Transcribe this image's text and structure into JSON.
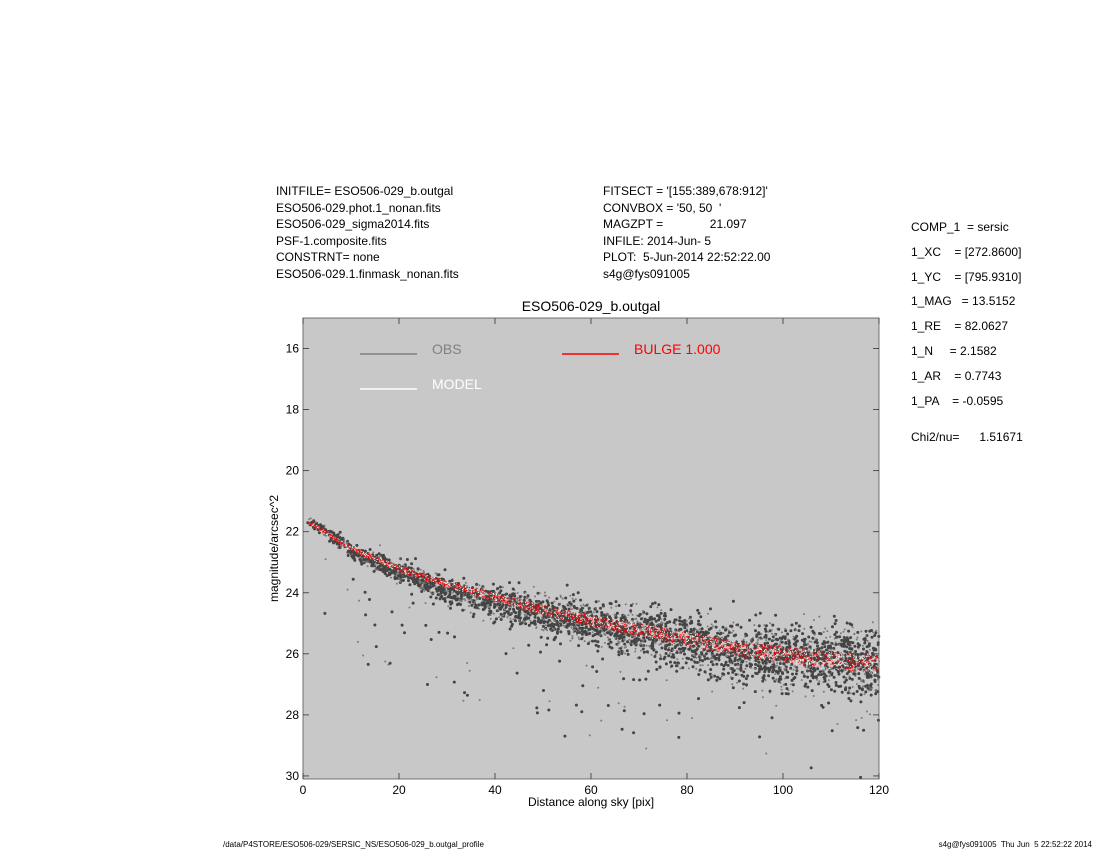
{
  "header_left": [
    "INITFILE= ESO506-029_b.outgal",
    "ESO506-029.phot.1_nonan.fits",
    "ESO506-029_sigma2014.fits",
    "PSF-1.composite.fits",
    "CONSTRNT= none",
    "ESO506-029.1.finmask_nonan.fits"
  ],
  "header_mid": [
    "FITSECT = '[155:389,678:912]'",
    "CONVBOX = '50, 50  '",
    "MAGZPT =              21.097",
    "INFILE: 2014-Jun- 5",
    "PLOT:  5-Jun-2014 22:52:22.00",
    "s4g@fys091005"
  ],
  "params": [
    "COMP_1  = sersic",
    "1_XC    = [272.8600]",
    "1_YC    = [795.9310]",
    "1_MAG   = 13.5152",
    "1_RE    = 82.0627",
    "1_N     = 2.1582",
    "1_AR    = 0.7743",
    "1_PA    = -0.0595"
  ],
  "chi2": "Chi2/nu=      1.51671",
  "footer_left": "/data/P4STORE/ESO506-029/SERSIC_NS/ESO506-029_b.outgal_profile",
  "footer_right": "s4g@fys091005  Thu Jun  5 22:52:22 2014",
  "chart_data": {
    "type": "scatter",
    "title": "ESO506-029_b.outgal",
    "xlabel": "Distance along sky [pix]",
    "ylabel": "magnitude/arcsec^2",
    "xlim": [
      0,
      120
    ],
    "ylim": [
      30.1,
      15.0
    ],
    "y_inverted": true,
    "xticks": [
      0,
      20,
      40,
      60,
      80,
      100,
      120
    ],
    "yticks": [
      16,
      18,
      20,
      22,
      24,
      26,
      28,
      30
    ],
    "grid": false,
    "background_color": "#c8c8c8",
    "legend": [
      {
        "label": "OBS",
        "color": "#808080"
      },
      {
        "label": "MODEL",
        "color": "#ffffff"
      },
      {
        "label": "BULGE  1.000",
        "color": "#ff0000"
      }
    ],
    "series": [
      {
        "name": "OBS",
        "kind": "scatter",
        "color": "#444444",
        "trend": [
          [
            1,
            21.6
          ],
          [
            10,
            22.6
          ],
          [
            20,
            23.3
          ],
          [
            30,
            23.9
          ],
          [
            40,
            24.3
          ],
          [
            50,
            24.7
          ],
          [
            60,
            25.0
          ],
          [
            70,
            25.3
          ],
          [
            80,
            25.6
          ],
          [
            90,
            25.9
          ],
          [
            100,
            26.1
          ],
          [
            110,
            26.2
          ],
          [
            120,
            26.3
          ]
        ],
        "scatter_mag": [
          0.15,
          1.4
        ]
      },
      {
        "name": "BULGE  1.000",
        "kind": "band",
        "color": "#ff0000",
        "center": [
          [
            1,
            21.65
          ],
          [
            10,
            22.55
          ],
          [
            20,
            23.2
          ],
          [
            30,
            23.7
          ],
          [
            40,
            24.15
          ],
          [
            50,
            24.55
          ],
          [
            60,
            24.9
          ],
          [
            70,
            25.2
          ],
          [
            80,
            25.5
          ],
          [
            90,
            25.8
          ],
          [
            100,
            26.0
          ],
          [
            110,
            26.2
          ],
          [
            120,
            26.35
          ]
        ],
        "half_width": [
          0.05,
          0.3
        ]
      }
    ]
  }
}
